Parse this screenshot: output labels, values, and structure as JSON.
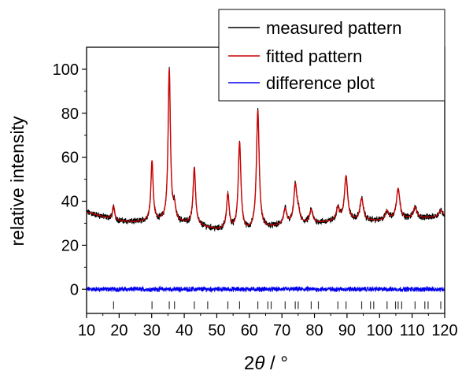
{
  "chart_data": {
    "type": "line",
    "title": "",
    "xlabel_main": "2",
    "xlabel_theta": "θ",
    "xlabel_unit": " / °",
    "ylabel": "relative intensity",
    "xlim": [
      10,
      120
    ],
    "ylim": [
      -11,
      110
    ],
    "x_ticks": [
      10,
      20,
      30,
      40,
      50,
      60,
      70,
      80,
      90,
      100,
      110,
      120
    ],
    "y_ticks": [
      0,
      20,
      40,
      60,
      80,
      100
    ],
    "grid": false,
    "legend_position": "top-right",
    "series": [
      {
        "name": "measured pattern",
        "color": "#000000"
      },
      {
        "name": "fitted pattern",
        "color": "#cc0000"
      },
      {
        "name": "difference plot",
        "color": "#0000ee"
      }
    ],
    "background": {
      "points": [
        [
          10,
          35
        ],
        [
          15,
          33
        ],
        [
          20,
          31
        ],
        [
          25,
          30.5
        ],
        [
          30,
          31
        ],
        [
          40,
          30
        ],
        [
          50,
          27
        ],
        [
          60,
          26
        ],
        [
          70,
          29
        ],
        [
          80,
          30
        ],
        [
          90,
          31
        ],
        [
          100,
          31
        ],
        [
          110,
          32
        ],
        [
          120,
          33
        ]
      ]
    },
    "peaks": [
      {
        "x": 18.3,
        "height": 6
      },
      {
        "x": 30.1,
        "height": 27
      },
      {
        "x": 35.4,
        "height": 69
      },
      {
        "x": 37.0,
        "height": 6
      },
      {
        "x": 43.1,
        "height": 26
      },
      {
        "x": 53.4,
        "height": 16
      },
      {
        "x": 57.0,
        "height": 40
      },
      {
        "x": 62.6,
        "height": 54
      },
      {
        "x": 71.0,
        "height": 7
      },
      {
        "x": 74.1,
        "height": 17
      },
      {
        "x": 75.0,
        "height": 5
      },
      {
        "x": 79.0,
        "height": 6
      },
      {
        "x": 87.2,
        "height": 6
      },
      {
        "x": 89.7,
        "height": 20
      },
      {
        "x": 94.5,
        "height": 10
      },
      {
        "x": 102.3,
        "height": 4
      },
      {
        "x": 105.7,
        "height": 14
      },
      {
        "x": 110.9,
        "height": 5
      },
      {
        "x": 118.8,
        "height": 3
      }
    ],
    "difference_level": 0,
    "reflection_positions": [
      18.3,
      30.1,
      35.4,
      37.0,
      43.1,
      47.2,
      53.4,
      57.0,
      62.6,
      65.7,
      66.7,
      71.0,
      74.1,
      75.0,
      79.0,
      81.2,
      87.2,
      89.7,
      94.5,
      97.2,
      98.2,
      102.3,
      104.9,
      105.7,
      106.8,
      110.9,
      113.9,
      114.9,
      118.8
    ]
  }
}
